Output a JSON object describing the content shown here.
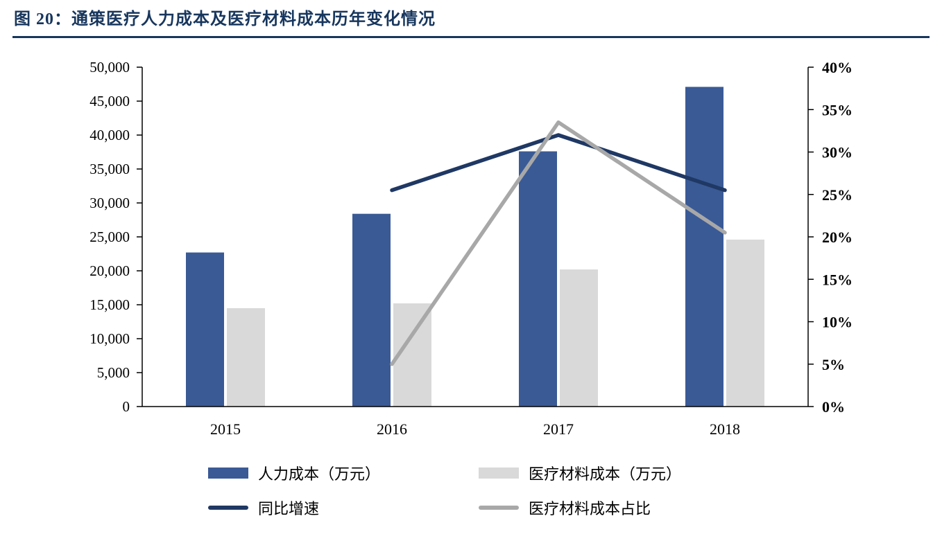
{
  "title": "图 20：通策医疗人力成本及医疗材料成本历年变化情况",
  "colors": {
    "title": "#17365D",
    "divider": "#17365D",
    "axis": "#000000",
    "labor_bar": "#3A5A96",
    "material_bar": "#D9D9D9",
    "growth_line": "#1F3864",
    "share_line": "#A8A8A8"
  },
  "chart_data": {
    "type": "bar+line combo",
    "title": "通策医疗人力成本及医疗材料成本历年变化情况",
    "categories": [
      "2015",
      "2016",
      "2017",
      "2018"
    ],
    "bar_series": [
      {
        "key": "labor-cost",
        "name": "人力成本（万元）",
        "color": "#3A5A96",
        "axis": "left",
        "values": [
          22700,
          28400,
          37600,
          47100
        ]
      },
      {
        "key": "material-cost",
        "name": "医疗材料成本（万元）",
        "color": "#D9D9D9",
        "axis": "left",
        "values": [
          14500,
          15200,
          20200,
          24600
        ]
      }
    ],
    "line_series": [
      {
        "key": "yoy-growth",
        "name": "同比增速",
        "color": "#1F3864",
        "axis": "right",
        "values": [
          null,
          25.5,
          32,
          25.5
        ]
      },
      {
        "key": "material-cost-share",
        "name": "医疗材料成本占比",
        "color": "#A8A8A8",
        "axis": "right",
        "values": [
          null,
          5,
          33.5,
          20.5
        ]
      }
    ],
    "left_axis": {
      "min": 0,
      "max": 50000,
      "step": 5000,
      "tick_labels": [
        "0",
        "5,000",
        "10,000",
        "15,000",
        "20,000",
        "25,000",
        "30,000",
        "35,000",
        "40,000",
        "45,000",
        "50,000"
      ]
    },
    "right_axis": {
      "min": 0,
      "max": 40,
      "step": 5,
      "tick_labels": [
        "0%",
        "5%",
        "10%",
        "15%",
        "20%",
        "25%",
        "30%",
        "35%",
        "40%"
      ]
    },
    "grid": false,
    "legend_position": "bottom"
  },
  "legend": {
    "items": [
      {
        "key": "labor-cost",
        "label": "人力成本（万元）",
        "swatch": "bar",
        "color": "#3A5A96"
      },
      {
        "key": "material-cost",
        "label": "医疗材料成本（万元）",
        "swatch": "bar",
        "color": "#D9D9D9"
      },
      {
        "key": "yoy-growth",
        "label": "同比增速",
        "swatch": "line",
        "color": "#1F3864"
      },
      {
        "key": "material-cost-share",
        "label": "医疗材料成本占比",
        "swatch": "line",
        "color": "#A8A8A8"
      }
    ]
  }
}
